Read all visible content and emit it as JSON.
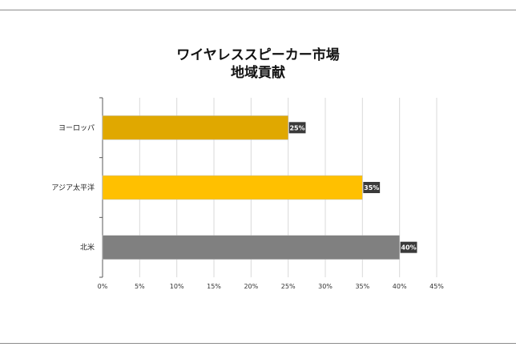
{
  "chart_data": {
    "type": "bar",
    "orientation": "horizontal",
    "title_line1": "ワイヤレススピーカー市場",
    "title_line2": "地域貢献",
    "categories": [
      "ヨーロッパ",
      "アジア太平洋",
      "北米"
    ],
    "values": [
      25,
      35,
      40
    ],
    "data_labels": [
      "25%",
      "35%",
      "40%"
    ],
    "colors": [
      "#e0a800",
      "#ffc000",
      "#808080"
    ],
    "label_box_color": "#3a3a3a",
    "xlim": [
      0,
      45
    ],
    "xticks": [
      "0%",
      "5%",
      "10%",
      "15%",
      "20%",
      "25%",
      "30%",
      "35%",
      "40%",
      "45%"
    ],
    "grid": true,
    "legend": "none"
  }
}
